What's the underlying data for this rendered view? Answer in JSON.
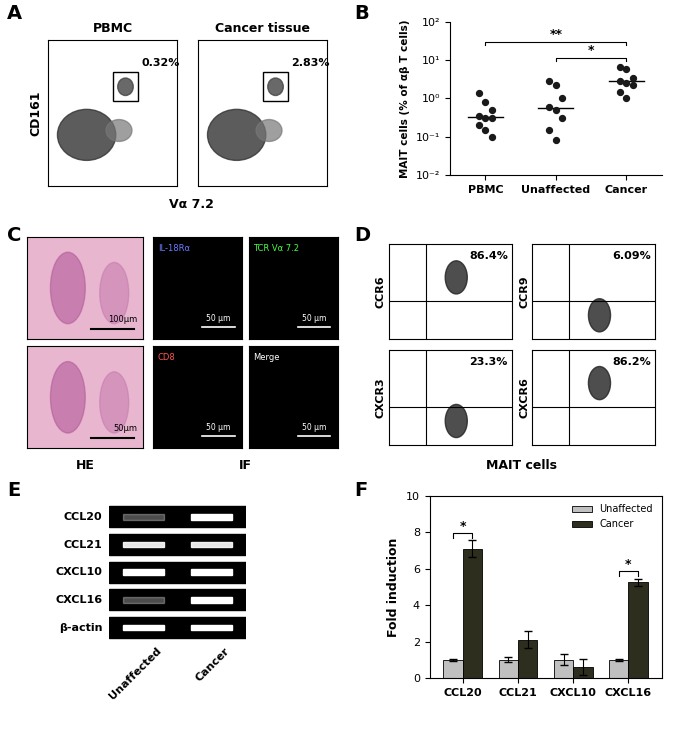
{
  "flow_A": {
    "panel": "A",
    "x_label": "Vα 7.2",
    "y_label": "CD161",
    "plots": [
      {
        "title": "PBMC",
        "gate_label": "0.32%"
      },
      {
        "title": "Cancer tissue",
        "gate_label": "2.83%"
      }
    ]
  },
  "chart_data": [
    {
      "panel": "B",
      "type": "scatter",
      "categories": [
        "PBMC",
        "Unaffected",
        "Cancer"
      ],
      "ylabel": "MAIT cells (% of αβ T cells)",
      "values": [
        [
          1.4,
          0.8,
          0.5,
          0.35,
          0.3,
          0.3,
          0.2,
          0.15,
          0.1
        ],
        [
          2.8,
          2.2,
          1.0,
          0.6,
          0.5,
          0.3,
          0.15,
          0.08
        ],
        [
          6.5,
          5.8,
          3.5,
          2.8,
          2.5,
          2.3,
          1.5,
          1.0
        ]
      ],
      "medians": [
        0.32,
        0.55,
        2.8
      ],
      "log": "y",
      "ylim": [
        0.01,
        100
      ],
      "yticks": [
        {
          "value": 0.01,
          "label": "10⁻²"
        },
        {
          "value": 0.1,
          "label": "10⁻¹"
        },
        {
          "value": 1,
          "label": "10⁰"
        },
        {
          "value": 10,
          "label": "10¹"
        },
        {
          "value": 100,
          "label": "10²"
        }
      ],
      "color": "#1a1a1a",
      "marker": "o",
      "significance": [
        {
          "from": "PBMC",
          "to": "Cancer",
          "label": "**"
        },
        {
          "from": "Unaffected",
          "to": "Cancer",
          "label": "*"
        }
      ]
    },
    {
      "panel": "F",
      "type": "bar",
      "categories": [
        "CCL20",
        "CCL21",
        "CXCL10",
        "CXCL16"
      ],
      "ylabel": "Fold induction",
      "series": [
        {
          "name": "Unaffected",
          "color": "#c0c0c0",
          "values": [
            1,
            1,
            1,
            1
          ],
          "errors": [
            0.05,
            0.15,
            0.3,
            0.05
          ]
        },
        {
          "name": "Cancer",
          "color": "#2e2e1f",
          "values": [
            7.1,
            2.1,
            0.6,
            5.25
          ],
          "errors": [
            0.45,
            0.45,
            0.45,
            0.2
          ]
        }
      ],
      "ylim": [
        0,
        10
      ],
      "yticks": [
        0,
        2,
        4,
        6,
        8,
        10
      ],
      "legend": "upper right",
      "significance": [
        {
          "category": "CCL20",
          "label": "*"
        },
        {
          "category": "CXCL16",
          "label": "*"
        }
      ]
    }
  ],
  "images_C": {
    "panel": "C",
    "captions": [
      "HE",
      "IF"
    ],
    "he_scale_labels": [
      "100μm",
      "50μm"
    ],
    "if_channels": [
      "IL-18Rα",
      "TCR Vα 7.2",
      "CD8",
      "Merge"
    ],
    "if_scale_label": "50 μm"
  },
  "flow_D": {
    "panel": "D",
    "x_label": "MAIT cells",
    "plots": [
      {
        "y_label": "CCR6",
        "label": "86.4%"
      },
      {
        "y_label": "CCR9",
        "label": "6.09%"
      },
      {
        "y_label": "CXCR3",
        "label": "23.3%"
      },
      {
        "y_label": "CXCR6",
        "label": "86.2%"
      }
    ]
  },
  "gel_E": {
    "panel": "E",
    "genes": [
      "CCL20",
      "CCL21",
      "CXCL10",
      "CXCL16",
      "β-actin"
    ],
    "lanes": [
      "Unaffected",
      "Cancer"
    ],
    "intensity": [
      [
        0.3,
        1.0
      ],
      [
        0.9,
        0.9
      ],
      [
        1.0,
        1.0
      ],
      [
        0.3,
        1.0
      ],
      [
        1.0,
        1.0
      ]
    ]
  }
}
